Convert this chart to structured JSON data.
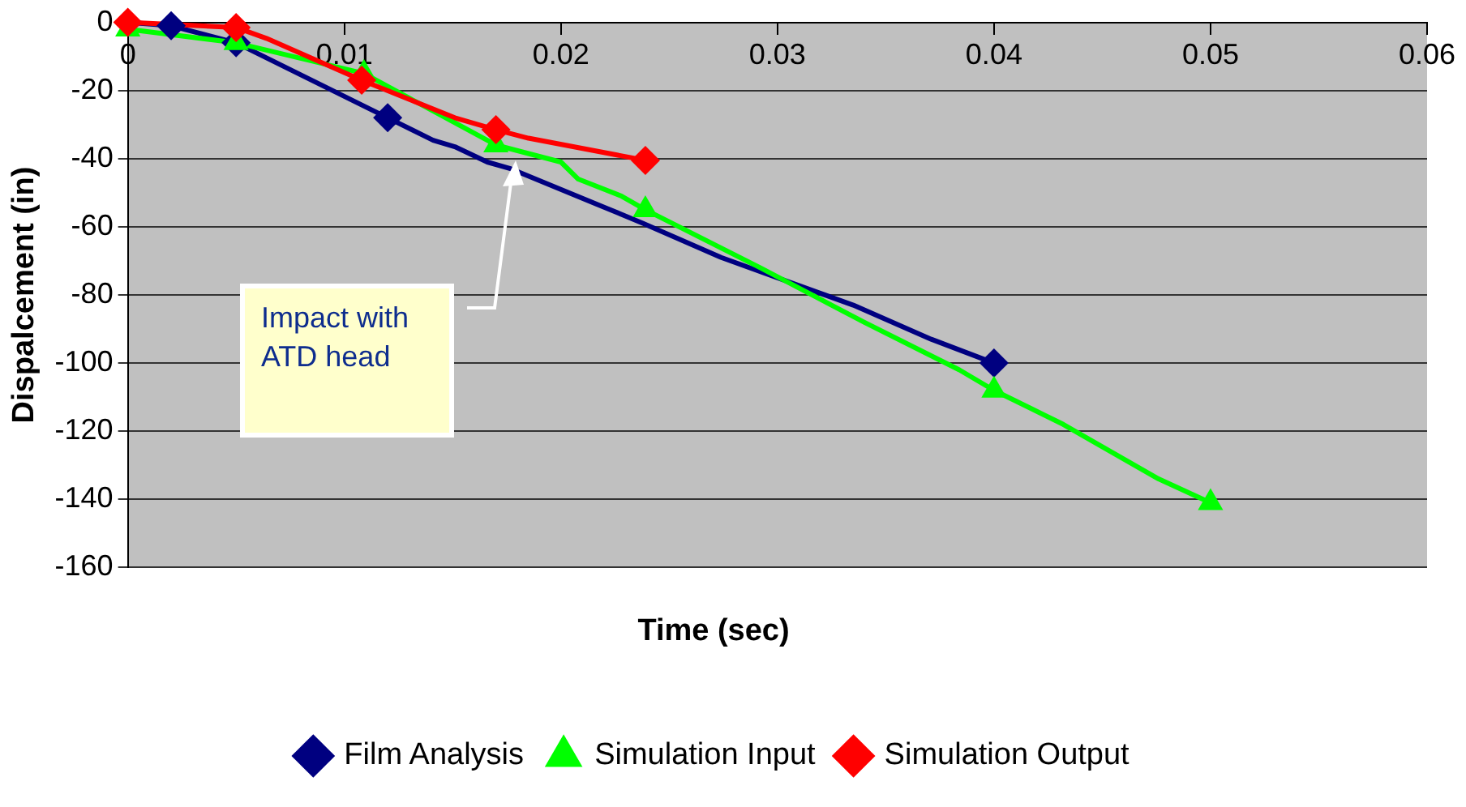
{
  "chart_data": {
    "type": "line",
    "xlabel": "Time (sec)",
    "ylabel": "Dispalcement (in)",
    "xlim": [
      0,
      0.06
    ],
    "xticks": [
      0,
      0.01,
      0.02,
      0.03,
      0.04,
      0.05,
      0.06
    ],
    "ylim": [
      -160,
      0
    ],
    "yticks": [
      -160,
      -140,
      -120,
      -100,
      -80,
      -60,
      -40,
      -20,
      0
    ],
    "grid": "y",
    "legend": "bottom",
    "line_style": "solid",
    "series": [
      {
        "color": "#000080",
        "marker": "none",
        "x": [
          0,
          0.002,
          0.005,
          0.012,
          0.0141,
          0.0151,
          0.0166,
          0.0177,
          0.0238,
          0.0274,
          0.0335,
          0.0371,
          0.04
        ],
        "values": [
          0,
          -1,
          -6,
          -28,
          -34.6,
          -36.5,
          -41,
          -43,
          -59,
          -69,
          -83,
          -93,
          -100
        ]
      },
      {
        "color": "#00ff00",
        "marker": "none",
        "x": [
          0,
          0.005,
          0.0109,
          0.017,
          0.02,
          0.0208,
          0.0228,
          0.0239,
          0.0292,
          0.034,
          0.0384,
          0.04,
          0.0432,
          0.0476,
          0.05
        ],
        "values": [
          -2,
          -6,
          -15,
          -36,
          -41,
          -46,
          -51,
          -55,
          -72,
          -88,
          -102,
          -108,
          -118,
          -134,
          -141
        ]
      },
      {
        "color": "#ff0000",
        "marker": "none",
        "x": [
          0,
          0.005,
          0.0064,
          0.0108,
          0.0151,
          0.017,
          0.0185,
          0.0239
        ],
        "values": [
          0,
          -1.5,
          -4.7,
          -17,
          -28,
          -31.5,
          -34,
          -40.5
        ]
      },
      {
        "type": "scatter",
        "name": "Film Analysis",
        "color": "#000080",
        "marker": "diamond",
        "x": [
          0.002,
          0.005,
          0.012,
          0.04
        ],
        "values": [
          -1,
          -6,
          -28,
          -100
        ]
      },
      {
        "type": "scatter",
        "name": "Simulation Input",
        "color": "#00ff00",
        "marker": "triangle",
        "x": [
          0,
          0.005,
          0.0109,
          0.017,
          0.0239,
          0.04,
          0.05
        ],
        "values": [
          -2,
          -6,
          -15,
          -36,
          -55,
          -108,
          -141
        ]
      },
      {
        "type": "scatter",
        "name": "Simulation Output",
        "color": "#ff0000",
        "marker": "diamond",
        "x": [
          0,
          0.005,
          0.0108,
          0.017,
          0.0239
        ],
        "values": [
          0,
          -1.5,
          -17,
          -31.5,
          -40.5
        ]
      }
    ],
    "annotations": [
      "Impact with ATD head"
    ]
  }
}
